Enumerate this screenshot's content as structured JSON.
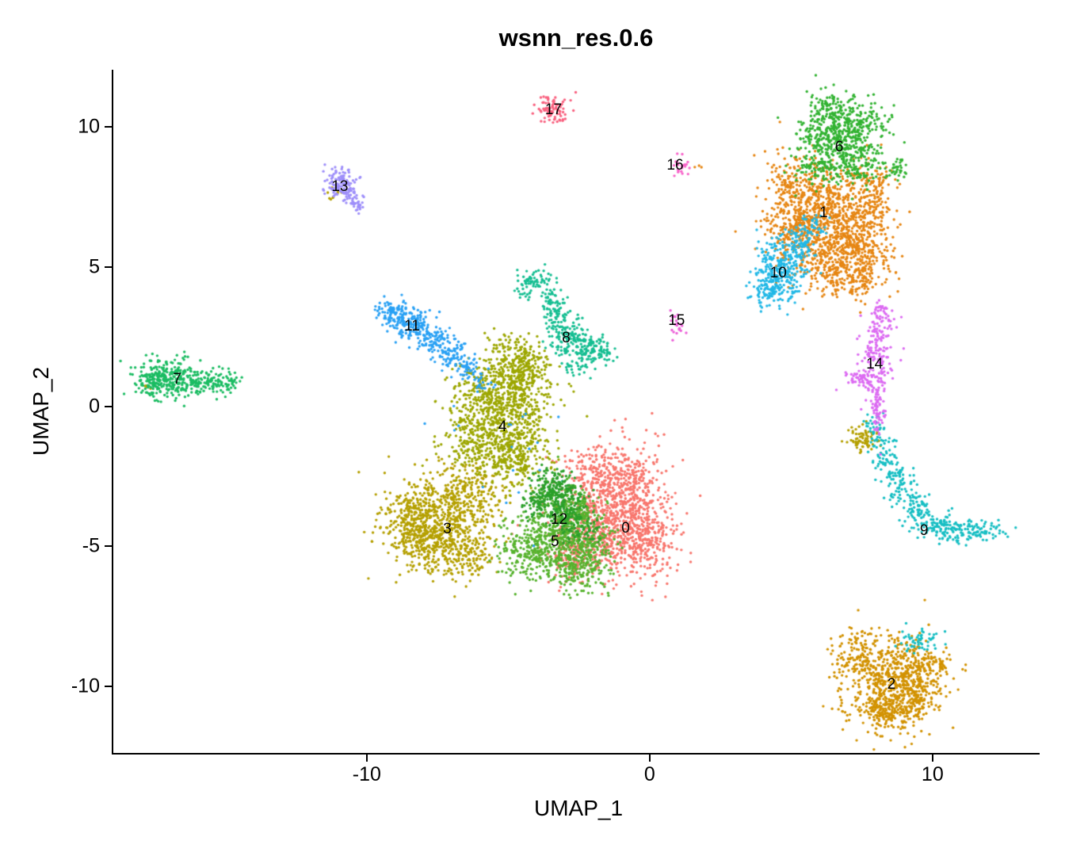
{
  "chart_data": {
    "type": "scatter",
    "title": "wsnn_res.0.6",
    "xlabel": "UMAP_1",
    "ylabel": "UMAP_2",
    "xlim": [
      -18.96,
      13.73
    ],
    "ylim": [
      -12.38,
      12.04
    ],
    "x_ticks": [
      -10,
      0,
      10
    ],
    "y_ticks": [
      -10,
      -5,
      0,
      5,
      10
    ],
    "grid": false,
    "legend": "none",
    "background": "#FFFFFF",
    "axis_color": "#000000",
    "label_color": "#000000",
    "point_radius_px": 1.7,
    "clusters": [
      {
        "id": 0,
        "label": "0",
        "color": "#F8766D",
        "label_pos": [
          -0.85,
          -4.35
        ],
        "blobs": [
          [
            -1.2,
            -3.6,
            0.9,
            1.1,
            650
          ],
          [
            -0.3,
            -4.7,
            0.65,
            0.75,
            300
          ],
          [
            -2.2,
            -4.7,
            0.75,
            0.65,
            250
          ],
          [
            -1.9,
            -2.3,
            0.55,
            0.5,
            120
          ],
          [
            -0.7,
            -2.5,
            0.5,
            0.55,
            100
          ],
          [
            -2.9,
            -5.4,
            0.5,
            0.4,
            60
          ]
        ]
      },
      {
        "id": 1,
        "label": "1",
        "color": "#E68613",
        "label_pos": [
          6.15,
          6.9
        ],
        "blobs": [
          [
            5.6,
            7.5,
            0.75,
            0.8,
            400
          ],
          [
            6.5,
            6.3,
            0.85,
            0.85,
            450
          ],
          [
            7.35,
            5.4,
            0.6,
            0.7,
            250
          ],
          [
            5.0,
            6.3,
            0.5,
            0.6,
            150
          ],
          [
            7.7,
            7.0,
            0.5,
            0.7,
            150
          ],
          [
            6.1,
            4.9,
            0.55,
            0.5,
            120
          ],
          [
            7.3,
            4.4,
            0.4,
            0.3,
            60
          ],
          [
            7.9,
            7.9,
            0.35,
            0.5,
            80
          ],
          [
            1.62,
            8.5,
            0.1,
            0.1,
            3
          ]
        ]
      },
      {
        "id": 2,
        "label": "2",
        "color": "#D29200",
        "label_pos": [
          8.55,
          -9.95
        ],
        "blobs": [
          [
            8.6,
            -9.8,
            0.85,
            0.8,
            550
          ],
          [
            7.5,
            -9.0,
            0.5,
            0.5,
            140
          ],
          [
            9.7,
            -9.3,
            0.45,
            0.4,
            110
          ],
          [
            8.3,
            -11.0,
            0.6,
            0.35,
            140
          ],
          [
            9.3,
            -10.5,
            0.5,
            0.4,
            100
          ]
        ]
      },
      {
        "id": 3,
        "label": "3",
        "color": "#B5A000",
        "label_pos": [
          -7.15,
          -4.4
        ],
        "blobs": [
          [
            -7.4,
            -4.2,
            0.95,
            0.85,
            550
          ],
          [
            -8.5,
            -3.9,
            0.5,
            0.55,
            180
          ],
          [
            -6.3,
            -3.1,
            0.6,
            0.55,
            180
          ],
          [
            -6.7,
            -5.3,
            0.6,
            0.45,
            160
          ],
          [
            -8.2,
            -5.0,
            0.4,
            0.4,
            80
          ],
          [
            7.5,
            -1.15,
            0.27,
            0.27,
            70
          ],
          [
            -11.15,
            7.62,
            0.14,
            0.1,
            10
          ],
          [
            -17.7,
            0.7,
            0.1,
            0.08,
            5
          ]
        ]
      },
      {
        "id": 4,
        "label": "4",
        "color": "#9DA702",
        "label_pos": [
          -5.2,
          -0.75
        ],
        "blobs": [
          [
            -5.2,
            -0.3,
            0.85,
            0.95,
            550
          ],
          [
            -4.5,
            0.9,
            0.55,
            0.55,
            220
          ],
          [
            -6.0,
            -1.4,
            0.65,
            0.55,
            220
          ],
          [
            -4.6,
            -1.9,
            0.6,
            0.55,
            180
          ],
          [
            -4.3,
            1.6,
            0.4,
            0.35,
            90
          ],
          [
            -5.0,
            2.1,
            0.45,
            0.3,
            50
          ],
          [
            -5.9,
            0.6,
            0.5,
            0.5,
            120
          ]
        ]
      },
      {
        "id": 5,
        "label": "5",
        "color": "#57B32E",
        "label_pos": [
          -3.35,
          -4.85
        ],
        "blobs": [
          [
            -3.3,
            -4.7,
            0.85,
            0.75,
            500
          ],
          [
            -2.5,
            -5.7,
            0.55,
            0.5,
            180
          ],
          [
            -4.3,
            -5.3,
            0.5,
            0.5,
            140
          ],
          [
            -2.7,
            -3.7,
            0.45,
            0.45,
            120
          ],
          [
            -1.9,
            -5.0,
            0.4,
            0.4,
            80
          ]
        ]
      },
      {
        "id": 6,
        "label": "6",
        "color": "#32B332",
        "label_pos": [
          6.7,
          9.25
        ],
        "blobs": [
          [
            6.5,
            9.8,
            0.65,
            0.6,
            350
          ],
          [
            7.2,
            8.9,
            0.55,
            0.55,
            200
          ],
          [
            5.9,
            8.7,
            0.4,
            0.45,
            110
          ],
          [
            7.5,
            10.2,
            0.45,
            0.35,
            80
          ],
          [
            8.75,
            8.5,
            0.28,
            0.2,
            40
          ],
          [
            6.3,
            10.7,
            0.3,
            0.2,
            40
          ]
        ]
      },
      {
        "id": 7,
        "label": "7",
        "color": "#1BBC62",
        "label_pos": [
          -16.7,
          0.95
        ],
        "blobs": [
          [
            -17.0,
            1.0,
            0.55,
            0.35,
            220
          ],
          [
            -15.9,
            0.9,
            0.5,
            0.25,
            120
          ],
          [
            -15.0,
            0.85,
            0.3,
            0.18,
            50
          ],
          [
            -17.6,
            0.85,
            0.22,
            0.28,
            70
          ]
        ]
      },
      {
        "id": 8,
        "label": "8",
        "color": "#16BE92",
        "label_pos": [
          -2.95,
          2.45
        ],
        "blobs": [
          [
            -4.35,
            4.35,
            0.18,
            0.25,
            35
          ],
          [
            -3.95,
            4.5,
            0.22,
            0.18,
            35
          ],
          [
            -3.55,
            4.05,
            0.18,
            0.28,
            35
          ],
          [
            -3.35,
            3.35,
            0.22,
            0.3,
            50
          ],
          [
            -2.95,
            2.6,
            0.38,
            0.38,
            110
          ],
          [
            -2.25,
            2.2,
            0.38,
            0.28,
            80
          ],
          [
            -1.7,
            1.95,
            0.3,
            0.2,
            40
          ],
          [
            -2.55,
            1.5,
            0.3,
            0.25,
            35
          ]
        ]
      },
      {
        "id": 9,
        "label": "9",
        "color": "#16BEC3",
        "label_pos": [
          9.7,
          -4.45
        ],
        "blobs": [
          [
            7.95,
            -0.8,
            0.18,
            0.28,
            35
          ],
          [
            8.3,
            -1.7,
            0.22,
            0.38,
            55
          ],
          [
            8.8,
            -2.7,
            0.28,
            0.38,
            65
          ],
          [
            9.4,
            -3.6,
            0.28,
            0.33,
            75
          ],
          [
            10.1,
            -4.25,
            0.38,
            0.27,
            75
          ],
          [
            11.0,
            -4.5,
            0.42,
            0.22,
            75
          ],
          [
            11.9,
            -4.45,
            0.33,
            0.18,
            45
          ],
          [
            9.45,
            -8.35,
            0.4,
            0.28,
            55
          ]
        ]
      },
      {
        "id": 10,
        "label": "10",
        "color": "#22B8E6",
        "label_pos": [
          4.55,
          4.75
        ],
        "blobs": [
          [
            4.6,
            4.85,
            0.45,
            0.55,
            260
          ],
          [
            5.25,
            5.7,
            0.35,
            0.4,
            90
          ],
          [
            4.2,
            4.1,
            0.3,
            0.3,
            60
          ],
          [
            5.6,
            6.3,
            0.25,
            0.3,
            40
          ]
        ]
      },
      {
        "id": 11,
        "label": "11",
        "color": "#2AA1F4",
        "label_pos": [
          -8.4,
          2.85
        ],
        "blobs": [
          [
            -9.0,
            3.3,
            0.33,
            0.24,
            110
          ],
          [
            -8.35,
            2.9,
            0.33,
            0.3,
            110
          ],
          [
            -7.65,
            2.4,
            0.3,
            0.3,
            85
          ],
          [
            -7.05,
            1.9,
            0.3,
            0.28,
            65
          ],
          [
            -6.5,
            1.45,
            0.28,
            0.28,
            45
          ],
          [
            -6.0,
            1.0,
            0.24,
            0.24,
            25
          ],
          [
            -5.0,
            -2.0,
            1.6,
            1.5,
            20
          ]
        ]
      },
      {
        "id": 12,
        "label": "12",
        "color": "#2BA02B",
        "label_pos": [
          -3.2,
          -4.05
        ],
        "blobs": [
          [
            -3.35,
            -3.0,
            0.42,
            0.4,
            200
          ],
          [
            -2.85,
            -3.8,
            0.38,
            0.38,
            110
          ],
          [
            -3.95,
            -3.5,
            0.28,
            0.28,
            55
          ],
          [
            -2.4,
            -4.4,
            0.35,
            0.3,
            50
          ]
        ]
      },
      {
        "id": 13,
        "label": "13",
        "color": "#9E8FFA",
        "label_pos": [
          -10.95,
          7.85
        ],
        "blobs": [
          [
            -10.9,
            8.0,
            0.28,
            0.28,
            110
          ],
          [
            -10.5,
            7.5,
            0.16,
            0.22,
            35
          ],
          [
            -10.25,
            7.1,
            0.1,
            0.12,
            12
          ]
        ]
      },
      {
        "id": 14,
        "label": "14",
        "color": "#DC6BF2",
        "label_pos": [
          7.95,
          1.5
        ],
        "blobs": [
          [
            8.1,
            2.6,
            0.28,
            0.45,
            85
          ],
          [
            8.0,
            1.45,
            0.28,
            0.45,
            85
          ],
          [
            8.05,
            0.3,
            0.14,
            0.45,
            45
          ],
          [
            8.1,
            -0.5,
            0.11,
            0.35,
            28
          ],
          [
            7.45,
            1.0,
            0.32,
            0.14,
            45
          ],
          [
            8.2,
            3.3,
            0.14,
            0.22,
            22
          ]
        ]
      },
      {
        "id": 15,
        "label": "15",
        "color": "#EC5FD8",
        "label_pos": [
          0.95,
          3.05
        ],
        "blobs": [
          [
            1.0,
            3.0,
            0.14,
            0.2,
            22
          ]
        ]
      },
      {
        "id": 16,
        "label": "16",
        "color": "#F763C9",
        "label_pos": [
          0.9,
          8.6
        ],
        "blobs": [
          [
            1.1,
            8.6,
            0.15,
            0.18,
            22
          ]
        ]
      },
      {
        "id": 17,
        "label": "17",
        "color": "#F9617F",
        "label_pos": [
          -3.4,
          10.6
        ],
        "blobs": [
          [
            -3.45,
            10.6,
            0.28,
            0.24,
            80
          ]
        ]
      }
    ]
  }
}
